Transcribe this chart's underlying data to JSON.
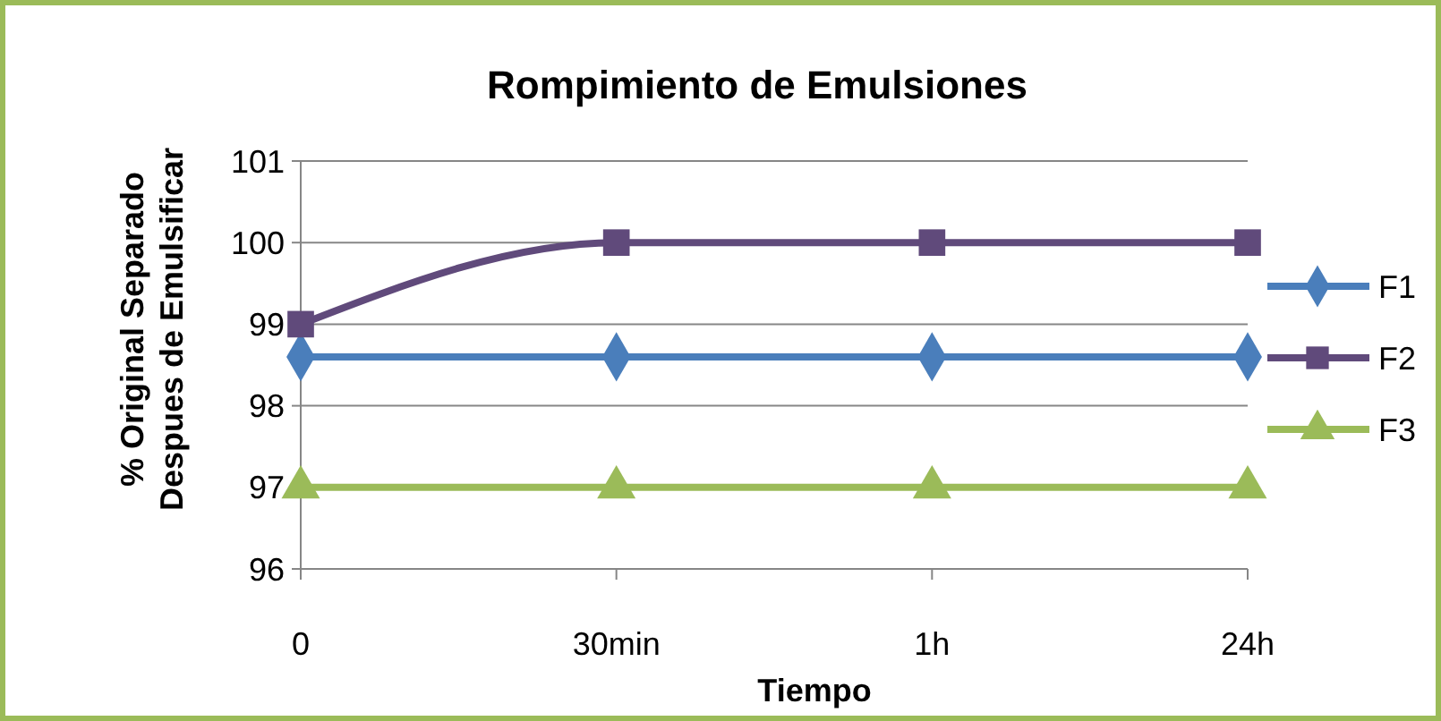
{
  "chart_data": {
    "type": "line",
    "title": "Rompimiento de Emulsiones",
    "xlabel": "Tiempo",
    "ylabel": "% Original Separado Despues de Emulsificar",
    "categories": [
      "0",
      "30min",
      "1h",
      "24h"
    ],
    "series": [
      {
        "name": "F1",
        "color": "#4a7ebb",
        "marker": "diamond",
        "values": [
          98.6,
          98.6,
          98.6,
          98.6
        ]
      },
      {
        "name": "F2",
        "color": "#604a7b",
        "marker": "square",
        "values": [
          99,
          100,
          100,
          100
        ]
      },
      {
        "name": "F3",
        "color": "#9bbb59",
        "marker": "triangle",
        "values": [
          97,
          97,
          97,
          97
        ]
      }
    ],
    "ylim": [
      96,
      101
    ],
    "yticks": [
      96,
      97,
      98,
      99,
      100,
      101
    ],
    "grid": "y",
    "legend": "right",
    "line_style": "solid"
  }
}
